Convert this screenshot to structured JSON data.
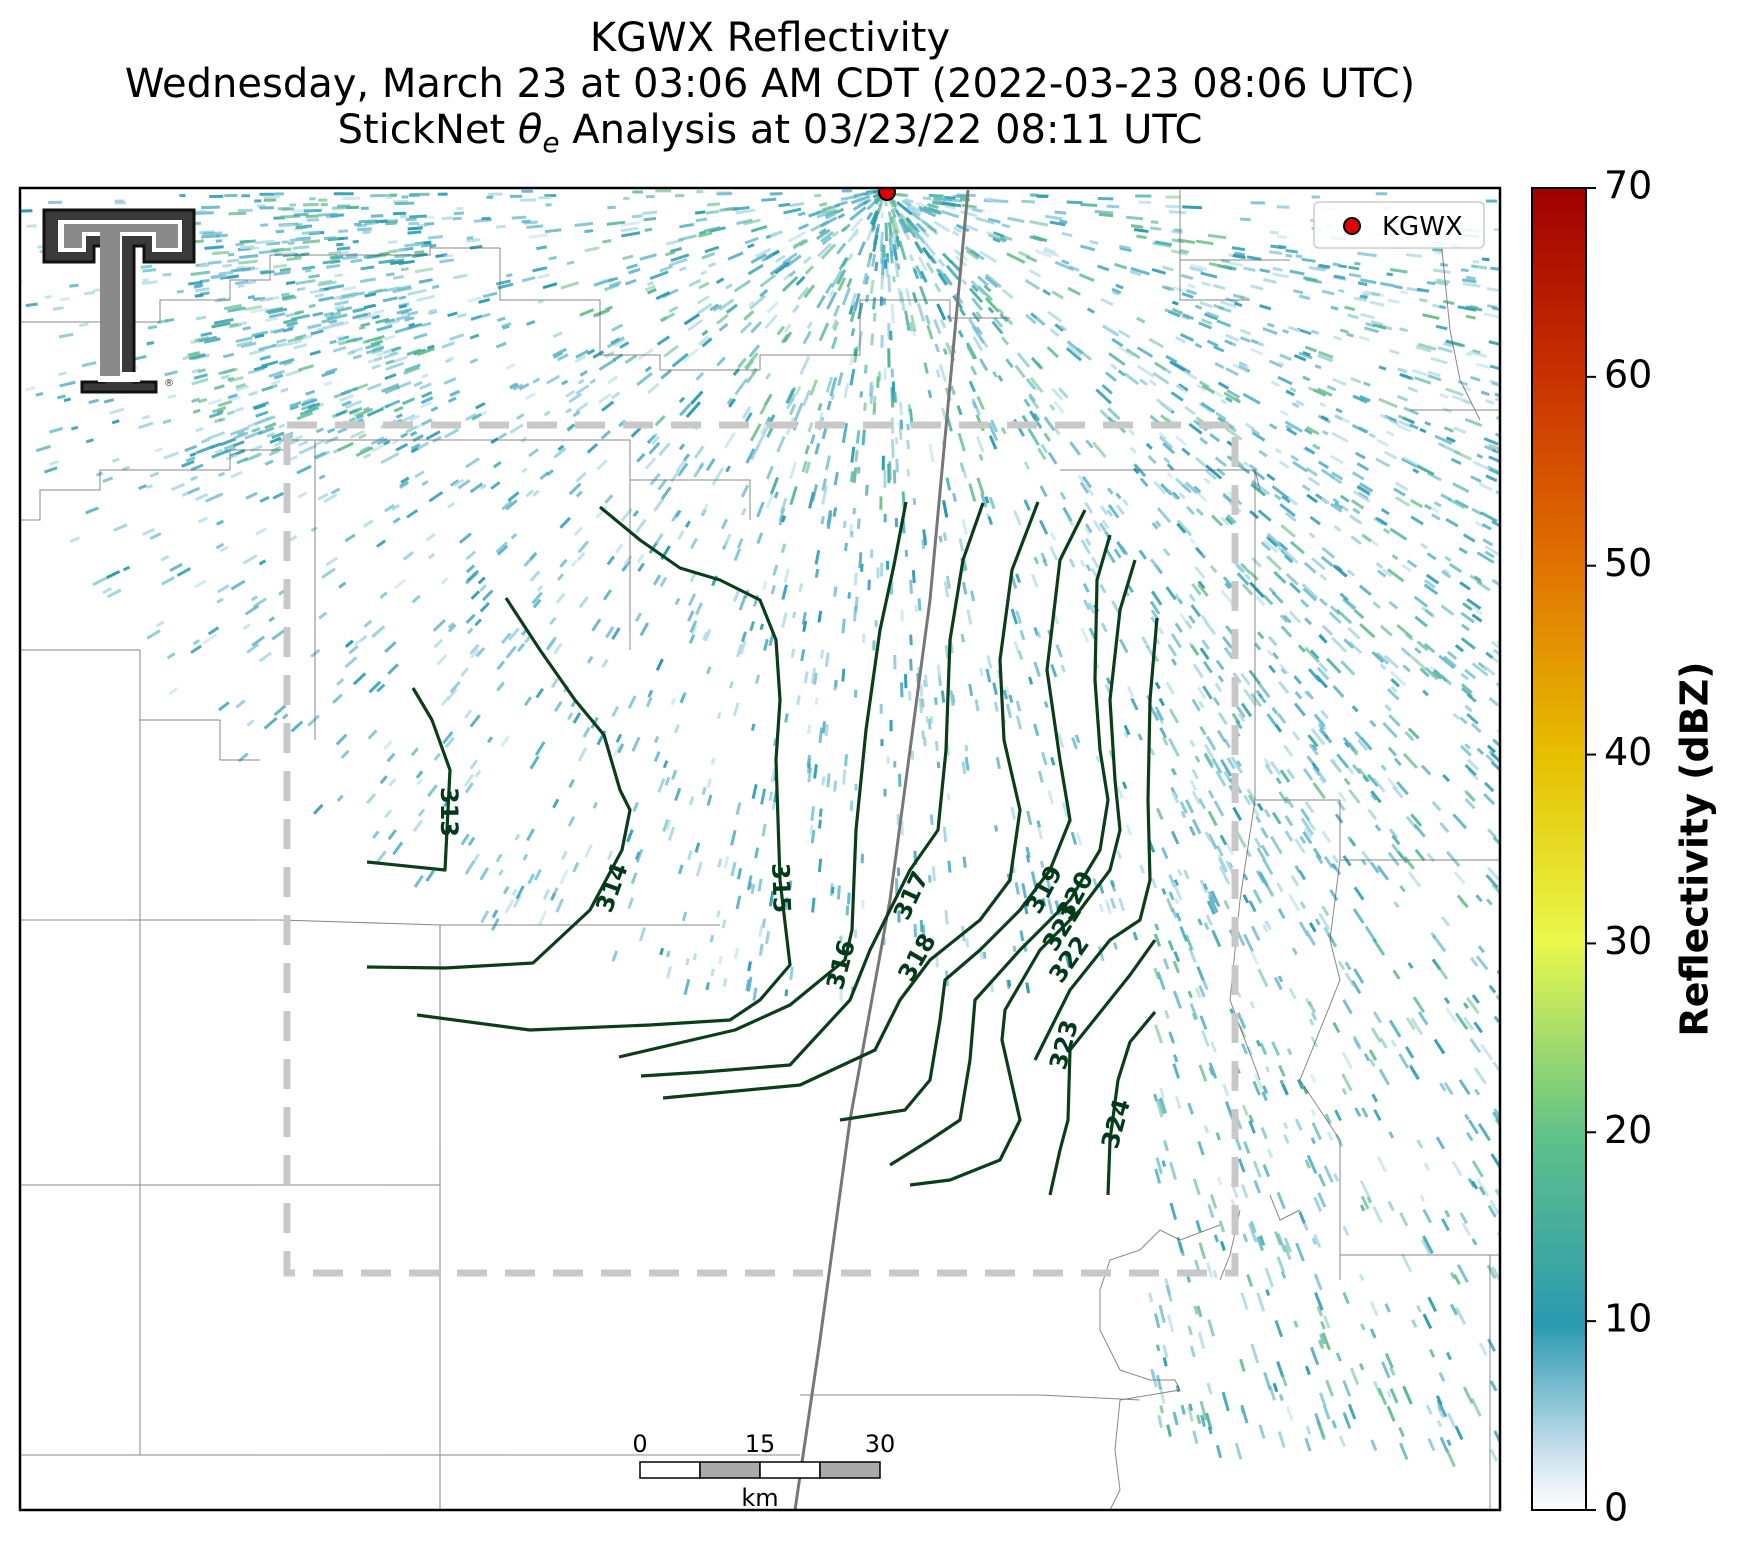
{
  "title": {
    "line1": "KGWX Reflectivity",
    "line2": "Wednesday, March 23 at 03:06 AM CDT (2022-03-23 08:06 UTC)",
    "line3_prefix": "StickNet ",
    "line3_symbol": "θ",
    "line3_subscript": "e",
    "line3_suffix": " Analysis at 03/23/22 08:11 UTC"
  },
  "legend": {
    "label": "KGWX",
    "marker_color": "#e00000"
  },
  "colorbar": {
    "label": "Reflectivity (dBZ)",
    "ticks": [
      "0",
      "10",
      "20",
      "30",
      "40",
      "50",
      "60",
      "70"
    ],
    "range": [
      0,
      70
    ],
    "colors": [
      "#ffffff",
      "#2a9ab0",
      "#5ec08a",
      "#e8f84a",
      "#e6c000",
      "#e07000",
      "#b00000"
    ]
  },
  "contours": {
    "color": "#0a3d1a",
    "labels": [
      "313",
      "314",
      "315",
      "316",
      "317",
      "318",
      "319",
      "320",
      "321",
      "322",
      "323",
      "324"
    ]
  },
  "scale_bar": {
    "ticks": [
      "0",
      "15",
      "30"
    ],
    "unit": "km"
  },
  "logo": {
    "name": "Texas Tech Double T",
    "mark": "®"
  },
  "analysis_domain": {
    "style": "dashed",
    "color": "#c8c8c8"
  }
}
